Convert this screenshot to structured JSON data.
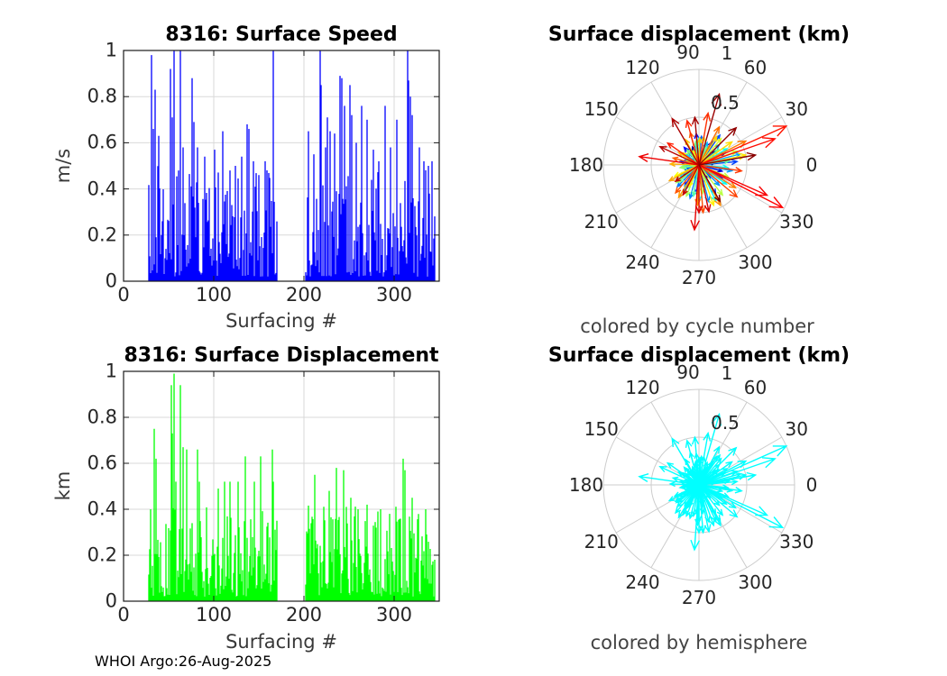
{
  "figure": {
    "background": "#FFFFFF",
    "footer": "WHOI Argo:26-Aug-2025"
  },
  "colors": {
    "speed_bars": "#0000FF",
    "displacement_bars": "#00FF00",
    "hemisphere_arrows": "#00FFFF",
    "cartesian_grid": "#D9D9D9",
    "polar_grid": "#CCCCCC",
    "axis_box": "#1A1A1A",
    "tick_text": "#262626",
    "caption_text": "#434343"
  },
  "chart_data": [
    {
      "id": "surface-speed",
      "type": "bar",
      "title": "8316: Surface Speed",
      "xlabel": "Surfacing #",
      "ylabel": "m/s",
      "xlim": [
        0,
        350
      ],
      "ylim": [
        0,
        1
      ],
      "xticks": [
        0,
        100,
        200,
        300
      ],
      "xtick_labels": [
        "0",
        "100",
        "200",
        "300"
      ],
      "yticks": [
        0,
        0.2,
        0.4,
        0.6,
        0.8,
        1
      ],
      "ytick_labels": [
        "0",
        "0.2",
        "0.4",
        "0.6",
        "0.8",
        "1"
      ],
      "grid": true,
      "bar_color": "#0000FF",
      "clusters": [
        [
          28,
          170
        ],
        [
          202,
          345
        ]
      ],
      "noise": {
        "seed": 8316,
        "min": 0.02,
        "max": 0.5,
        "power": 1.6
      },
      "peaks": [
        [
          31,
          0.98
        ],
        [
          33,
          0.66
        ],
        [
          35,
          0.83
        ],
        [
          39,
          0.63
        ],
        [
          52,
          0.92
        ],
        [
          54,
          0.71
        ],
        [
          56,
          1.02
        ],
        [
          63,
          1.03
        ],
        [
          66,
          0.58
        ],
        [
          76,
          0.88
        ],
        [
          78,
          0.69
        ],
        [
          82,
          0.58
        ],
        [
          90,
          0.54
        ],
        [
          101,
          0.57
        ],
        [
          110,
          0.65
        ],
        [
          118,
          0.48
        ],
        [
          124,
          0.5
        ],
        [
          131,
          0.54
        ],
        [
          137,
          0.68
        ],
        [
          139,
          0.66
        ],
        [
          144,
          0.52
        ],
        [
          150,
          0.46
        ],
        [
          157,
          0.52
        ],
        [
          166,
          1.0
        ],
        [
          205,
          0.65
        ],
        [
          211,
          0.55
        ],
        [
          218,
          1.02
        ],
        [
          219,
          0.85
        ],
        [
          224,
          0.58
        ],
        [
          226,
          0.71
        ],
        [
          229,
          0.65
        ],
        [
          234,
          0.64
        ],
        [
          240,
          0.89
        ],
        [
          242,
          0.88
        ],
        [
          245,
          0.76
        ],
        [
          251,
          0.85
        ],
        [
          253,
          0.72
        ],
        [
          258,
          0.6
        ],
        [
          264,
          0.76
        ],
        [
          270,
          0.7
        ],
        [
          277,
          0.57
        ],
        [
          283,
          0.52
        ],
        [
          290,
          0.76
        ],
        [
          296,
          0.58
        ],
        [
          303,
          0.7
        ],
        [
          315,
          1.02
        ],
        [
          316,
          0.87
        ],
        [
          318,
          0.8
        ],
        [
          320,
          0.72
        ],
        [
          328,
          0.58
        ],
        [
          333,
          0.52
        ],
        [
          338,
          0.5
        ],
        [
          342,
          0.52
        ]
      ]
    },
    {
      "id": "surface-displacement",
      "type": "bar",
      "title": "8316: Surface Displacement",
      "xlabel": "Surfacing #",
      "ylabel": "km",
      "xlim": [
        0,
        350
      ],
      "ylim": [
        0,
        1
      ],
      "xticks": [
        0,
        100,
        200,
        300
      ],
      "xtick_labels": [
        "0",
        "100",
        "200",
        "300"
      ],
      "yticks": [
        0,
        0.2,
        0.4,
        0.6,
        0.8,
        1
      ],
      "ytick_labels": [
        "0",
        "0.2",
        "0.4",
        "0.6",
        "0.8",
        "1"
      ],
      "grid": true,
      "bar_color": "#00FF00",
      "clusters": [
        [
          28,
          170
        ],
        [
          202,
          345
        ]
      ],
      "noise": {
        "seed": 4242,
        "min": 0.02,
        "max": 0.42,
        "power": 1.7
      },
      "peaks": [
        [
          34,
          0.75
        ],
        [
          36,
          0.62
        ],
        [
          53,
          0.94
        ],
        [
          54,
          0.73
        ],
        [
          56,
          0.99
        ],
        [
          58,
          0.52
        ],
        [
          63,
          0.94
        ],
        [
          66,
          0.67
        ],
        [
          70,
          0.66
        ],
        [
          82,
          0.66
        ],
        [
          84,
          0.52
        ],
        [
          105,
          0.49
        ],
        [
          112,
          0.52
        ],
        [
          118,
          0.52
        ],
        [
          127,
          0.52
        ],
        [
          135,
          0.63
        ],
        [
          145,
          0.52
        ],
        [
          152,
          0.63
        ],
        [
          165,
          0.66
        ],
        [
          166,
          0.52
        ],
        [
          212,
          0.55
        ],
        [
          228,
          0.48
        ],
        [
          236,
          0.58
        ],
        [
          244,
          0.57
        ],
        [
          252,
          0.45
        ],
        [
          260,
          0.4
        ],
        [
          270,
          0.42
        ],
        [
          285,
          0.4
        ],
        [
          295,
          0.38
        ],
        [
          310,
          0.62
        ],
        [
          312,
          0.57
        ],
        [
          320,
          0.45
        ],
        [
          335,
          0.4
        ]
      ]
    },
    {
      "id": "polar-cycle",
      "type": "polar_quiver",
      "title": "Surface displacement (km)",
      "caption": "colored by cycle number",
      "rlim": [
        0,
        1
      ],
      "rticks": [
        0.5,
        1
      ],
      "rtick_labels": [
        "0.5",
        "1"
      ],
      "theta_ticks": [
        0,
        30,
        60,
        90,
        120,
        150,
        180,
        210,
        240,
        270,
        300,
        330
      ],
      "theta_tick_labels": [
        "0",
        "30",
        "60",
        "90",
        "120",
        "150",
        "180",
        "210",
        "240",
        "270",
        "300",
        "330"
      ],
      "color_mode": "jet",
      "arrows": [
        [
          10,
          0.18
        ],
        [
          40,
          0.22
        ],
        [
          75,
          0.15
        ],
        [
          110,
          0.2
        ],
        [
          150,
          0.12
        ],
        [
          185,
          0.16
        ],
        [
          215,
          0.2
        ],
        [
          250,
          0.14
        ],
        [
          280,
          0.22
        ],
        [
          310,
          0.18
        ],
        [
          345,
          0.25
        ],
        [
          25,
          0.3
        ],
        [
          60,
          0.28
        ],
        [
          95,
          0.33
        ],
        [
          130,
          0.24
        ],
        [
          170,
          0.2
        ],
        [
          200,
          0.15
        ],
        [
          235,
          0.26
        ],
        [
          265,
          0.3
        ],
        [
          300,
          0.35
        ],
        [
          330,
          0.28
        ],
        [
          5,
          0.4
        ],
        [
          55,
          0.38
        ],
        [
          85,
          0.3
        ],
        [
          125,
          0.18
        ],
        [
          160,
          0.15
        ],
        [
          195,
          0.12
        ],
        [
          225,
          0.32
        ],
        [
          255,
          0.36
        ],
        [
          285,
          0.4
        ],
        [
          315,
          0.3
        ],
        [
          350,
          0.35
        ],
        [
          15,
          0.45
        ],
        [
          45,
          0.3
        ],
        [
          70,
          0.25
        ],
        [
          100,
          0.22
        ],
        [
          140,
          0.18
        ],
        [
          180,
          0.14
        ],
        [
          210,
          0.24
        ],
        [
          240,
          0.3
        ],
        [
          270,
          0.38
        ],
        [
          295,
          0.42
        ],
        [
          325,
          0.35
        ],
        [
          355,
          0.3
        ],
        [
          30,
          0.34
        ],
        [
          65,
          0.2
        ],
        [
          90,
          0.28
        ],
        [
          120,
          0.15
        ],
        [
          155,
          0.1
        ],
        [
          190,
          0.18
        ],
        [
          220,
          0.28
        ],
        [
          260,
          0.33
        ],
        [
          8,
          0.32
        ],
        [
          38,
          0.26
        ],
        [
          68,
          0.2
        ],
        [
          98,
          0.25
        ],
        [
          128,
          0.2
        ],
        [
          158,
          0.14
        ],
        [
          188,
          0.2
        ],
        [
          218,
          0.3
        ],
        [
          248,
          0.35
        ],
        [
          278,
          0.3
        ],
        [
          308,
          0.4
        ],
        [
          338,
          0.33
        ],
        [
          20,
          0.42
        ],
        [
          50,
          0.36
        ],
        [
          80,
          0.3
        ],
        [
          112,
          0.16
        ],
        [
          145,
          0.22
        ],
        [
          205,
          0.28
        ],
        [
          245,
          0.25
        ],
        [
          290,
          0.45
        ],
        [
          12,
          0.5
        ],
        [
          35,
          0.42
        ],
        [
          58,
          0.35
        ],
        [
          88,
          0.28
        ],
        [
          118,
          0.3
        ],
        [
          148,
          0.25
        ],
        [
          178,
          0.3
        ],
        [
          208,
          0.35
        ],
        [
          238,
          0.4
        ],
        [
          268,
          0.42
        ],
        [
          298,
          0.48
        ],
        [
          328,
          0.45
        ],
        [
          27,
          0.55
        ],
        [
          62,
          0.45
        ],
        [
          105,
          0.35
        ],
        [
          165,
          0.28
        ],
        [
          230,
          0.38
        ],
        [
          275,
          0.5
        ],
        [
          320,
          0.52
        ],
        [
          352,
          0.45
        ],
        [
          80,
          0.55
        ],
        [
          105,
          0.48
        ],
        [
          145,
          0.4
        ],
        [
          24,
          1.0
        ],
        [
          19,
          0.84
        ],
        [
          333,
          0.98
        ],
        [
          336,
          0.78
        ],
        [
          172,
          0.63
        ],
        [
          266,
          0.68
        ],
        [
          270,
          0.5
        ],
        [
          282,
          0.5
        ],
        [
          242,
          0.35
        ],
        [
          215,
          0.3
        ],
        [
          155,
          0.45
        ],
        [
          120,
          0.56
        ],
        [
          95,
          0.5
        ],
        [
          74,
          0.77
        ],
        [
          45,
          0.55
        ],
        [
          10,
          0.6
        ],
        [
          300,
          0.44
        ]
      ]
    },
    {
      "id": "polar-hemisphere",
      "type": "polar_quiver",
      "title": "Surface displacement (km)",
      "caption": "colored by hemisphere",
      "rlim": [
        0,
        1
      ],
      "rticks": [
        0.5,
        1
      ],
      "rtick_labels": [
        "0.5",
        "1"
      ],
      "theta_ticks": [
        0,
        30,
        60,
        90,
        120,
        150,
        180,
        210,
        240,
        270,
        300,
        330
      ],
      "theta_tick_labels": [
        "0",
        "30",
        "60",
        "90",
        "120",
        "150",
        "180",
        "210",
        "240",
        "270",
        "300",
        "330"
      ],
      "color_mode": "solid",
      "arrow_color": "#00FFFF",
      "arrows_same_as": "polar-cycle"
    }
  ]
}
